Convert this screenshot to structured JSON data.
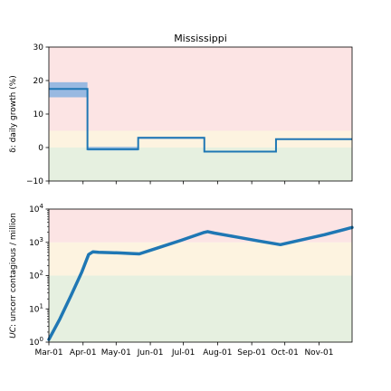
{
  "chart_data": [
    {
      "type": "line",
      "title": "Mississippi",
      "ylabel": "δ: daily growth (%)",
      "ylim": [
        -10,
        30
      ],
      "yticks": [
        "−10",
        "0",
        "10",
        "20",
        "30"
      ],
      "ytick_values": [
        -10,
        0,
        10,
        20,
        30
      ],
      "x_range_days": [
        0,
        275
      ],
      "bands": [
        {
          "from": -10,
          "to": 0,
          "color": "#e6f0e0"
        },
        {
          "from": 0,
          "to": 5,
          "color": "#fdf3e0"
        },
        {
          "from": 5,
          "to": 30,
          "color": "#fce4e4"
        }
      ],
      "segments": [
        {
          "x0": 0,
          "x1": 35,
          "y": 17.5,
          "lo": 15,
          "hi": 19.5
        },
        {
          "x0": 35,
          "x1": 81,
          "y": -0.5,
          "lo": -0.9,
          "hi": 0.2
        },
        {
          "x0": 81,
          "x1": 141,
          "y": 2.9,
          "lo": 2.6,
          "hi": 3.2
        },
        {
          "x0": 141,
          "x1": 206,
          "y": -1.2,
          "lo": -1.4,
          "hi": -1.0
        },
        {
          "x0": 206,
          "x1": 275,
          "y": 2.5,
          "lo": 2.3,
          "hi": 2.7
        }
      ],
      "line_color": "#1f77b4",
      "band_color": "#7faee0"
    },
    {
      "type": "line",
      "ylabel": "UC: uncorr contagious / million",
      "yscale": "log",
      "ylim": [
        1,
        10000
      ],
      "yticks": [
        "10^0",
        "10^1",
        "10^2",
        "10^3",
        "10^4"
      ],
      "x_range_days": [
        0,
        275
      ],
      "xticks": [
        "Mar-01",
        "Apr-01",
        "May-01",
        "Jun-01",
        "Jul-01",
        "Aug-01",
        "Sep-01",
        "Oct-01",
        "Nov-01"
      ],
      "xtick_days": [
        0,
        31,
        61,
        92,
        122,
        153,
        184,
        214,
        245
      ],
      "bands": [
        {
          "from": 1,
          "to": 100,
          "color": "#e6f0e0"
        },
        {
          "from": 100,
          "to": 1000,
          "color": "#fdf3e0"
        },
        {
          "from": 1000,
          "to": 10000,
          "color": "#fce4e4"
        }
      ],
      "x": [
        0,
        10,
        20,
        30,
        36,
        40,
        45,
        55,
        65,
        75,
        82,
        100,
        120,
        140,
        144,
        150,
        170,
        190,
        210,
        230,
        250,
        275
      ],
      "y": [
        1.2,
        5,
        25,
        130,
        430,
        520,
        500,
        490,
        480,
        460,
        450,
        700,
        1150,
        1950,
        2100,
        1900,
        1450,
        1100,
        850,
        1200,
        1700,
        2800
      ],
      "line_color": "#1f77b4"
    }
  ]
}
